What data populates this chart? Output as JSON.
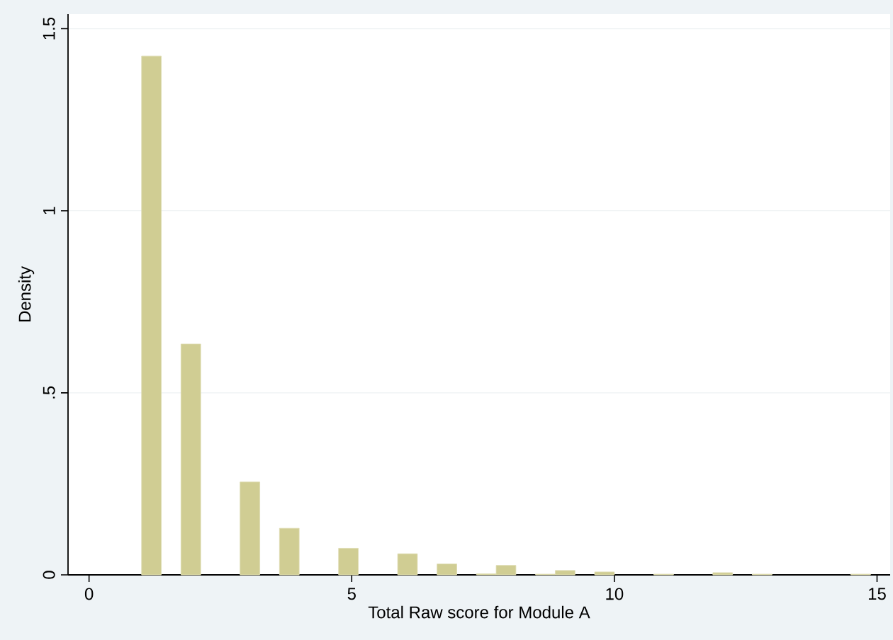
{
  "chart_data": {
    "type": "histogram",
    "xlabel": "Total Raw score for Module A",
    "ylabel": "Density",
    "color": "#d0cd93",
    "bins": [
      1,
      1.375,
      1.75,
      2.125,
      2.5,
      2.875,
      3.25,
      3.625,
      4,
      4.375,
      4.75,
      5.125,
      5.5,
      5.875,
      6.25,
      6.625,
      7,
      7.375,
      7.75,
      8.125,
      8.5,
      8.875,
      9.25,
      9.625,
      10,
      10.375,
      10.75,
      11.125,
      11.5,
      11.875,
      12.25,
      12.625,
      13,
      13.375,
      13.75,
      14.125,
      14.5,
      14.875,
      15.25
    ],
    "values": [
      1.425,
      0,
      0.634,
      0,
      0,
      0.255,
      0,
      0.128,
      0,
      0,
      0.073,
      0,
      0,
      0.058,
      0,
      0.03,
      0,
      0.003,
      0.026,
      0,
      0.002,
      0.012,
      0,
      0.008,
      0,
      0,
      0.002,
      0,
      0,
      0.006,
      0,
      0.002,
      0,
      0,
      0,
      0,
      0.002,
      0
    ],
    "xlim": [
      -0.4,
      15.25
    ],
    "ylim": [
      0,
      1.54
    ],
    "xticks": [
      0,
      5,
      10,
      15
    ],
    "yticks": [
      0,
      {
        "value": 0.5,
        "label": ".5"
      },
      1,
      1.5
    ],
    "grid": "y"
  }
}
